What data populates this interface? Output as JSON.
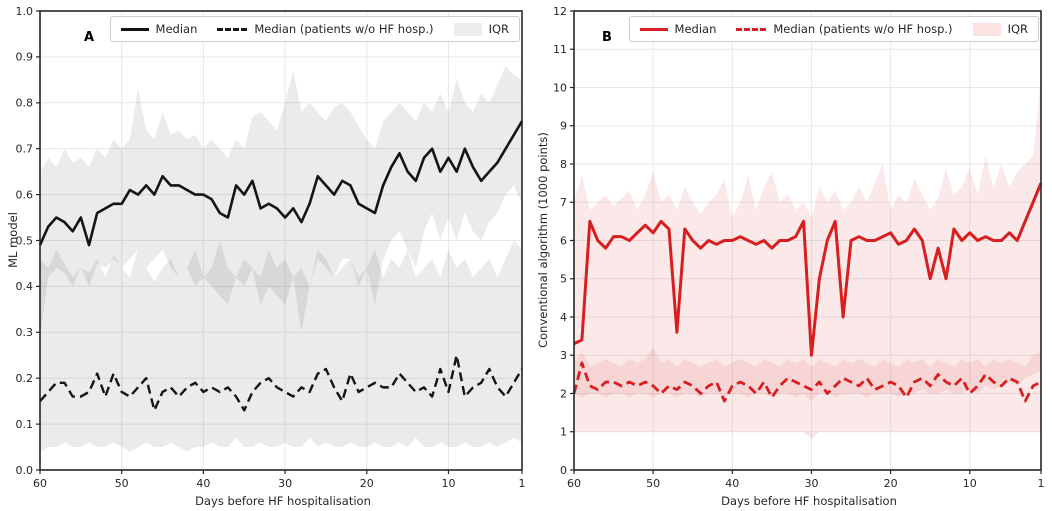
{
  "figure": {
    "xlabel": "Days before HF hospitalisation"
  },
  "chart_data": [
    {
      "type": "line",
      "panel_label": "A",
      "ylabel": "ML model",
      "xlabel": "Days before HF hospitalisation",
      "ylim": [
        0.0,
        1.0
      ],
      "yticks": [
        0,
        0.1,
        0.2,
        0.3,
        0.4,
        0.5,
        0.6,
        0.7,
        0.8,
        0.9,
        1.0
      ],
      "ytick_labels": [
        "0.0",
        "0.1",
        "0.2",
        "0.3",
        "0.4",
        "0.5",
        "0.6",
        "0.7",
        "0.8",
        "0.9",
        "1.0"
      ],
      "x_days": {
        "start": 60,
        "end": 1
      },
      "xtick_days": [
        60,
        50,
        40,
        30,
        20,
        10,
        1
      ],
      "xtick_labels": [
        "60",
        "50",
        "40",
        "30",
        "20",
        "10",
        "1"
      ],
      "grid": true,
      "legend_position": "upper right",
      "legend": [
        {
          "label": "Median",
          "sample": "solid-line"
        },
        {
          "label": "Median (patients w/o HF hosp.)",
          "sample": "dashed-line"
        },
        {
          "label": "IQR",
          "sample": "patch"
        }
      ],
      "colors": {
        "line": "#141414",
        "band": "rgba(0,0,0,0.08)",
        "legend_patch": "#ececec"
      },
      "series": [
        {
          "name": "Median",
          "style": "solid",
          "width": 2.6,
          "values": [
            0.49,
            0.53,
            0.55,
            0.54,
            0.52,
            0.55,
            0.49,
            0.56,
            0.57,
            0.58,
            0.58,
            0.61,
            0.6,
            0.62,
            0.6,
            0.64,
            0.62,
            0.62,
            0.61,
            0.6,
            0.6,
            0.59,
            0.56,
            0.55,
            0.62,
            0.6,
            0.63,
            0.57,
            0.58,
            0.57,
            0.55,
            0.57,
            0.54,
            0.58,
            0.64,
            0.62,
            0.6,
            0.63,
            0.62,
            0.58,
            0.57,
            0.56,
            0.62,
            0.66,
            0.69,
            0.65,
            0.63,
            0.68,
            0.7,
            0.65,
            0.68,
            0.65,
            0.7,
            0.66,
            0.63,
            0.65,
            0.67,
            0.7,
            0.73,
            0.76
          ]
        },
        {
          "name": "Median (patients w/o HF hosp.)",
          "style": "dashed",
          "width": 2.4,
          "values": [
            0.15,
            0.17,
            0.19,
            0.19,
            0.16,
            0.16,
            0.17,
            0.21,
            0.16,
            0.21,
            0.17,
            0.16,
            0.18,
            0.2,
            0.13,
            0.17,
            0.18,
            0.16,
            0.18,
            0.19,
            0.17,
            0.18,
            0.17,
            0.18,
            0.16,
            0.13,
            0.17,
            0.19,
            0.2,
            0.18,
            0.17,
            0.16,
            0.18,
            0.17,
            0.21,
            0.22,
            0.18,
            0.15,
            0.21,
            0.17,
            0.18,
            0.19,
            0.18,
            0.18,
            0.21,
            0.19,
            0.17,
            0.18,
            0.16,
            0.22,
            0.17,
            0.25,
            0.16,
            0.18,
            0.19,
            0.22,
            0.18,
            0.16,
            0.19,
            0.22
          ]
        }
      ],
      "bands": [
        {
          "name": "IQR (Median)",
          "upper": [
            0.65,
            0.68,
            0.66,
            0.7,
            0.67,
            0.68,
            0.66,
            0.7,
            0.68,
            0.72,
            0.7,
            0.72,
            0.83,
            0.74,
            0.72,
            0.78,
            0.73,
            0.74,
            0.72,
            0.73,
            0.7,
            0.72,
            0.7,
            0.68,
            0.72,
            0.7,
            0.77,
            0.78,
            0.76,
            0.74,
            0.8,
            0.87,
            0.78,
            0.8,
            0.78,
            0.76,
            0.79,
            0.8,
            0.78,
            0.75,
            0.72,
            0.7,
            0.76,
            0.78,
            0.8,
            0.78,
            0.76,
            0.8,
            0.78,
            0.82,
            0.78,
            0.85,
            0.8,
            0.78,
            0.82,
            0.8,
            0.84,
            0.88,
            0.86,
            0.85
          ],
          "lower": [
            0.29,
            0.42,
            0.44,
            0.43,
            0.4,
            0.44,
            0.4,
            0.45,
            0.44,
            0.46,
            0.44,
            0.46,
            0.48,
            0.44,
            0.46,
            0.48,
            0.44,
            0.42,
            0.44,
            0.4,
            0.42,
            0.4,
            0.38,
            0.36,
            0.42,
            0.4,
            0.44,
            0.36,
            0.4,
            0.38,
            0.36,
            0.42,
            0.3,
            0.4,
            0.46,
            0.44,
            0.42,
            0.46,
            0.46,
            0.4,
            0.44,
            0.36,
            0.46,
            0.5,
            0.52,
            0.48,
            0.44,
            0.52,
            0.56,
            0.5,
            0.55,
            0.5,
            0.56,
            0.52,
            0.5,
            0.54,
            0.56,
            0.6,
            0.62,
            0.58
          ]
        },
        {
          "name": "IQR (Median, patients w/o HF hosp.)",
          "upper": [
            0.46,
            0.44,
            0.48,
            0.45,
            0.42,
            0.44,
            0.43,
            0.46,
            0.42,
            0.47,
            0.44,
            0.42,
            0.48,
            0.44,
            0.41,
            0.44,
            0.46,
            0.42,
            0.44,
            0.48,
            0.42,
            0.44,
            0.5,
            0.44,
            0.42,
            0.46,
            0.44,
            0.42,
            0.48,
            0.44,
            0.46,
            0.42,
            0.44,
            0.4,
            0.48,
            0.46,
            0.42,
            0.44,
            0.46,
            0.42,
            0.44,
            0.48,
            0.42,
            0.46,
            0.44,
            0.48,
            0.42,
            0.44,
            0.46,
            0.42,
            0.48,
            0.44,
            0.46,
            0.42,
            0.44,
            0.46,
            0.42,
            0.46,
            0.5,
            0.48
          ],
          "lower": [
            0.04,
            0.05,
            0.05,
            0.06,
            0.05,
            0.05,
            0.06,
            0.05,
            0.05,
            0.06,
            0.05,
            0.04,
            0.05,
            0.06,
            0.05,
            0.05,
            0.06,
            0.05,
            0.04,
            0.05,
            0.05,
            0.06,
            0.05,
            0.05,
            0.07,
            0.05,
            0.05,
            0.06,
            0.05,
            0.05,
            0.06,
            0.05,
            0.05,
            0.07,
            0.05,
            0.06,
            0.05,
            0.05,
            0.06,
            0.05,
            0.05,
            0.06,
            0.05,
            0.05,
            0.06,
            0.05,
            0.07,
            0.05,
            0.05,
            0.06,
            0.05,
            0.05,
            0.06,
            0.05,
            0.05,
            0.06,
            0.05,
            0.06,
            0.07,
            0.06
          ]
        }
      ]
    },
    {
      "type": "line",
      "panel_label": "B",
      "ylabel": "Conventional algorithm (1000 points)",
      "xlabel": "Days before HF hospitalisation",
      "ylim": [
        0,
        12
      ],
      "yticks": [
        0,
        1,
        2,
        3,
        4,
        5,
        6,
        7,
        8,
        9,
        10,
        11,
        12
      ],
      "ytick_labels": [
        "0",
        "1",
        "2",
        "3",
        "4",
        "5",
        "6",
        "7",
        "8",
        "9",
        "10",
        "11",
        "12"
      ],
      "x_days": {
        "start": 60,
        "end": 1
      },
      "xtick_days": [
        60,
        50,
        40,
        30,
        20,
        10,
        1
      ],
      "xtick_labels": [
        "60",
        "50",
        "40",
        "30",
        "20",
        "10",
        "1"
      ],
      "grid": true,
      "legend_position": "upper right",
      "legend": [
        {
          "label": "Median",
          "sample": "solid-line"
        },
        {
          "label": "Median (patients w/o HF hosp.)",
          "sample": "dashed-line"
        },
        {
          "label": "IQR",
          "sample": "patch"
        }
      ],
      "colors": {
        "line": "#d81f1f",
        "band": "rgba(216,36,36,0.10)",
        "legend_patch": "#fbe3e3"
      },
      "series": [
        {
          "name": "Median",
          "style": "solid",
          "width": 3,
          "values": [
            3.3,
            3.4,
            6.5,
            6.0,
            5.8,
            6.1,
            6.1,
            6.0,
            6.2,
            6.4,
            6.2,
            6.5,
            6.3,
            3.6,
            6.3,
            6.0,
            5.8,
            6.0,
            5.9,
            6.0,
            6.0,
            6.1,
            6.0,
            5.9,
            6.0,
            5.8,
            6.0,
            6.0,
            6.1,
            6.5,
            3.0,
            5.0,
            6.0,
            6.5,
            4.0,
            6.0,
            6.1,
            6.0,
            6.0,
            6.1,
            6.2,
            5.9,
            6.0,
            6.3,
            6.0,
            5.0,
            5.8,
            5.0,
            6.3,
            6.0,
            6.2,
            6.0,
            6.1,
            6.0,
            6.0,
            6.2,
            6.0,
            6.5,
            7.0,
            7.5
          ]
        },
        {
          "name": "Median (patients w/o HF hosp.)",
          "style": "dashed",
          "width": 2.8,
          "values": [
            2.0,
            2.8,
            2.2,
            2.1,
            2.3,
            2.3,
            2.2,
            2.3,
            2.2,
            2.3,
            2.2,
            2.0,
            2.2,
            2.1,
            2.3,
            2.2,
            2.0,
            2.2,
            2.3,
            1.8,
            2.2,
            2.3,
            2.2,
            2.0,
            2.3,
            1.9,
            2.2,
            2.4,
            2.3,
            2.2,
            2.1,
            2.3,
            2.0,
            2.2,
            2.4,
            2.3,
            2.2,
            2.4,
            2.1,
            2.2,
            2.3,
            2.2,
            1.9,
            2.3,
            2.4,
            2.2,
            2.5,
            2.3,
            2.2,
            2.4,
            2.0,
            2.2,
            2.5,
            2.3,
            2.2,
            2.4,
            2.3,
            1.8,
            2.2,
            2.3
          ]
        }
      ],
      "bands": [
        {
          "name": "IQR (Median)",
          "upper": [
            7.0,
            7.7,
            6.8,
            7.0,
            7.2,
            6.9,
            7.1,
            7.3,
            6.8,
            7.2,
            7.8,
            7.0,
            7.2,
            6.8,
            7.4,
            7.0,
            6.7,
            7.0,
            7.2,
            7.6,
            6.6,
            7.0,
            7.7,
            6.8,
            7.4,
            7.8,
            7.0,
            7.2,
            6.8,
            7.0,
            6.6,
            7.4,
            7.0,
            7.3,
            6.8,
            7.0,
            7.4,
            7.0,
            7.5,
            8.0,
            6.8,
            7.2,
            7.0,
            7.6,
            7.2,
            6.8,
            7.1,
            7.9,
            7.2,
            7.4,
            7.9,
            7.2,
            8.2,
            7.4,
            8.0,
            7.4,
            7.8,
            8.0,
            8.2,
            10.3
          ],
          "lower": [
            2.0,
            1.9,
            2.0,
            2.0,
            1.9,
            2.0,
            2.0,
            1.9,
            2.0,
            2.0,
            1.9,
            2.0,
            2.0,
            1.9,
            2.0,
            2.0,
            1.9,
            2.0,
            2.0,
            1.9,
            2.0,
            2.0,
            1.9,
            2.0,
            2.0,
            1.9,
            2.0,
            2.0,
            1.9,
            2.0,
            1.8,
            2.0,
            2.0,
            1.9,
            2.0,
            2.0,
            2.0,
            1.9,
            2.0,
            2.0,
            2.0,
            1.9,
            2.0,
            2.0,
            2.1,
            2.0,
            2.0,
            2.1,
            2.0,
            2.0,
            2.1,
            2.0,
            2.2,
            2.1,
            2.2,
            2.3,
            2.2,
            2.4,
            2.5,
            2.6
          ]
        },
        {
          "name": "IQR (Median, patients w/o HF hosp.)",
          "upper": [
            2.8,
            3.1,
            2.7,
            2.8,
            2.9,
            2.8,
            2.7,
            2.9,
            2.8,
            2.9,
            3.2,
            2.8,
            2.9,
            2.7,
            2.9,
            2.8,
            2.7,
            2.8,
            2.9,
            2.7,
            2.8,
            2.9,
            2.8,
            2.7,
            2.9,
            2.8,
            2.7,
            2.9,
            2.8,
            2.9,
            2.7,
            2.9,
            2.8,
            2.7,
            2.9,
            2.8,
            2.9,
            2.8,
            2.7,
            2.9,
            2.8,
            2.7,
            2.9,
            2.8,
            2.9,
            2.7,
            2.9,
            2.8,
            2.7,
            2.9,
            2.8,
            2.9,
            2.7,
            2.9,
            2.8,
            2.9,
            2.8,
            2.7,
            3.0,
            3.1
          ],
          "lower": [
            1.0,
            1.0,
            1.0,
            1.0,
            1.0,
            1.0,
            1.0,
            1.0,
            1.0,
            1.0,
            1.0,
            1.0,
            1.0,
            1.0,
            1.0,
            1.0,
            1.0,
            1.0,
            1.0,
            1.0,
            1.0,
            1.0,
            1.0,
            1.0,
            1.0,
            1.0,
            1.0,
            1.0,
            1.0,
            1.0,
            0.8,
            1.0,
            1.0,
            1.0,
            1.0,
            1.0,
            1.0,
            1.0,
            1.0,
            1.0,
            1.0,
            1.0,
            1.0,
            1.0,
            1.0,
            1.0,
            1.0,
            1.0,
            1.0,
            1.0,
            1.0,
            1.0,
            1.0,
            1.0,
            1.0,
            1.0,
            1.0,
            1.0,
            1.0,
            1.0
          ]
        }
      ]
    }
  ]
}
